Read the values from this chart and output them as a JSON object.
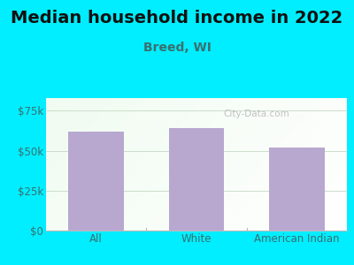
{
  "title": "Median household income in 2022",
  "subtitle": "Breed, WI",
  "categories": [
    "All",
    "White",
    "American Indian"
  ],
  "values": [
    62000,
    64000,
    52000
  ],
  "bar_color": "#b8a8d0",
  "background_outer": "#00eeff",
  "yticks": [
    0,
    25000,
    50000,
    75000
  ],
  "ytick_labels": [
    "$0",
    "$25k",
    "$50k",
    "$75k"
  ],
  "ylim": [
    0,
    83000
  ],
  "title_fontsize": 14,
  "subtitle_fontsize": 10,
  "tick_label_fontsize": 8.5,
  "axis_label_color": "#3a7070",
  "title_color": "#111111",
  "watermark": "City-Data.com",
  "grid_color": "#ccddcc",
  "spine_color": "#bbbbbb"
}
